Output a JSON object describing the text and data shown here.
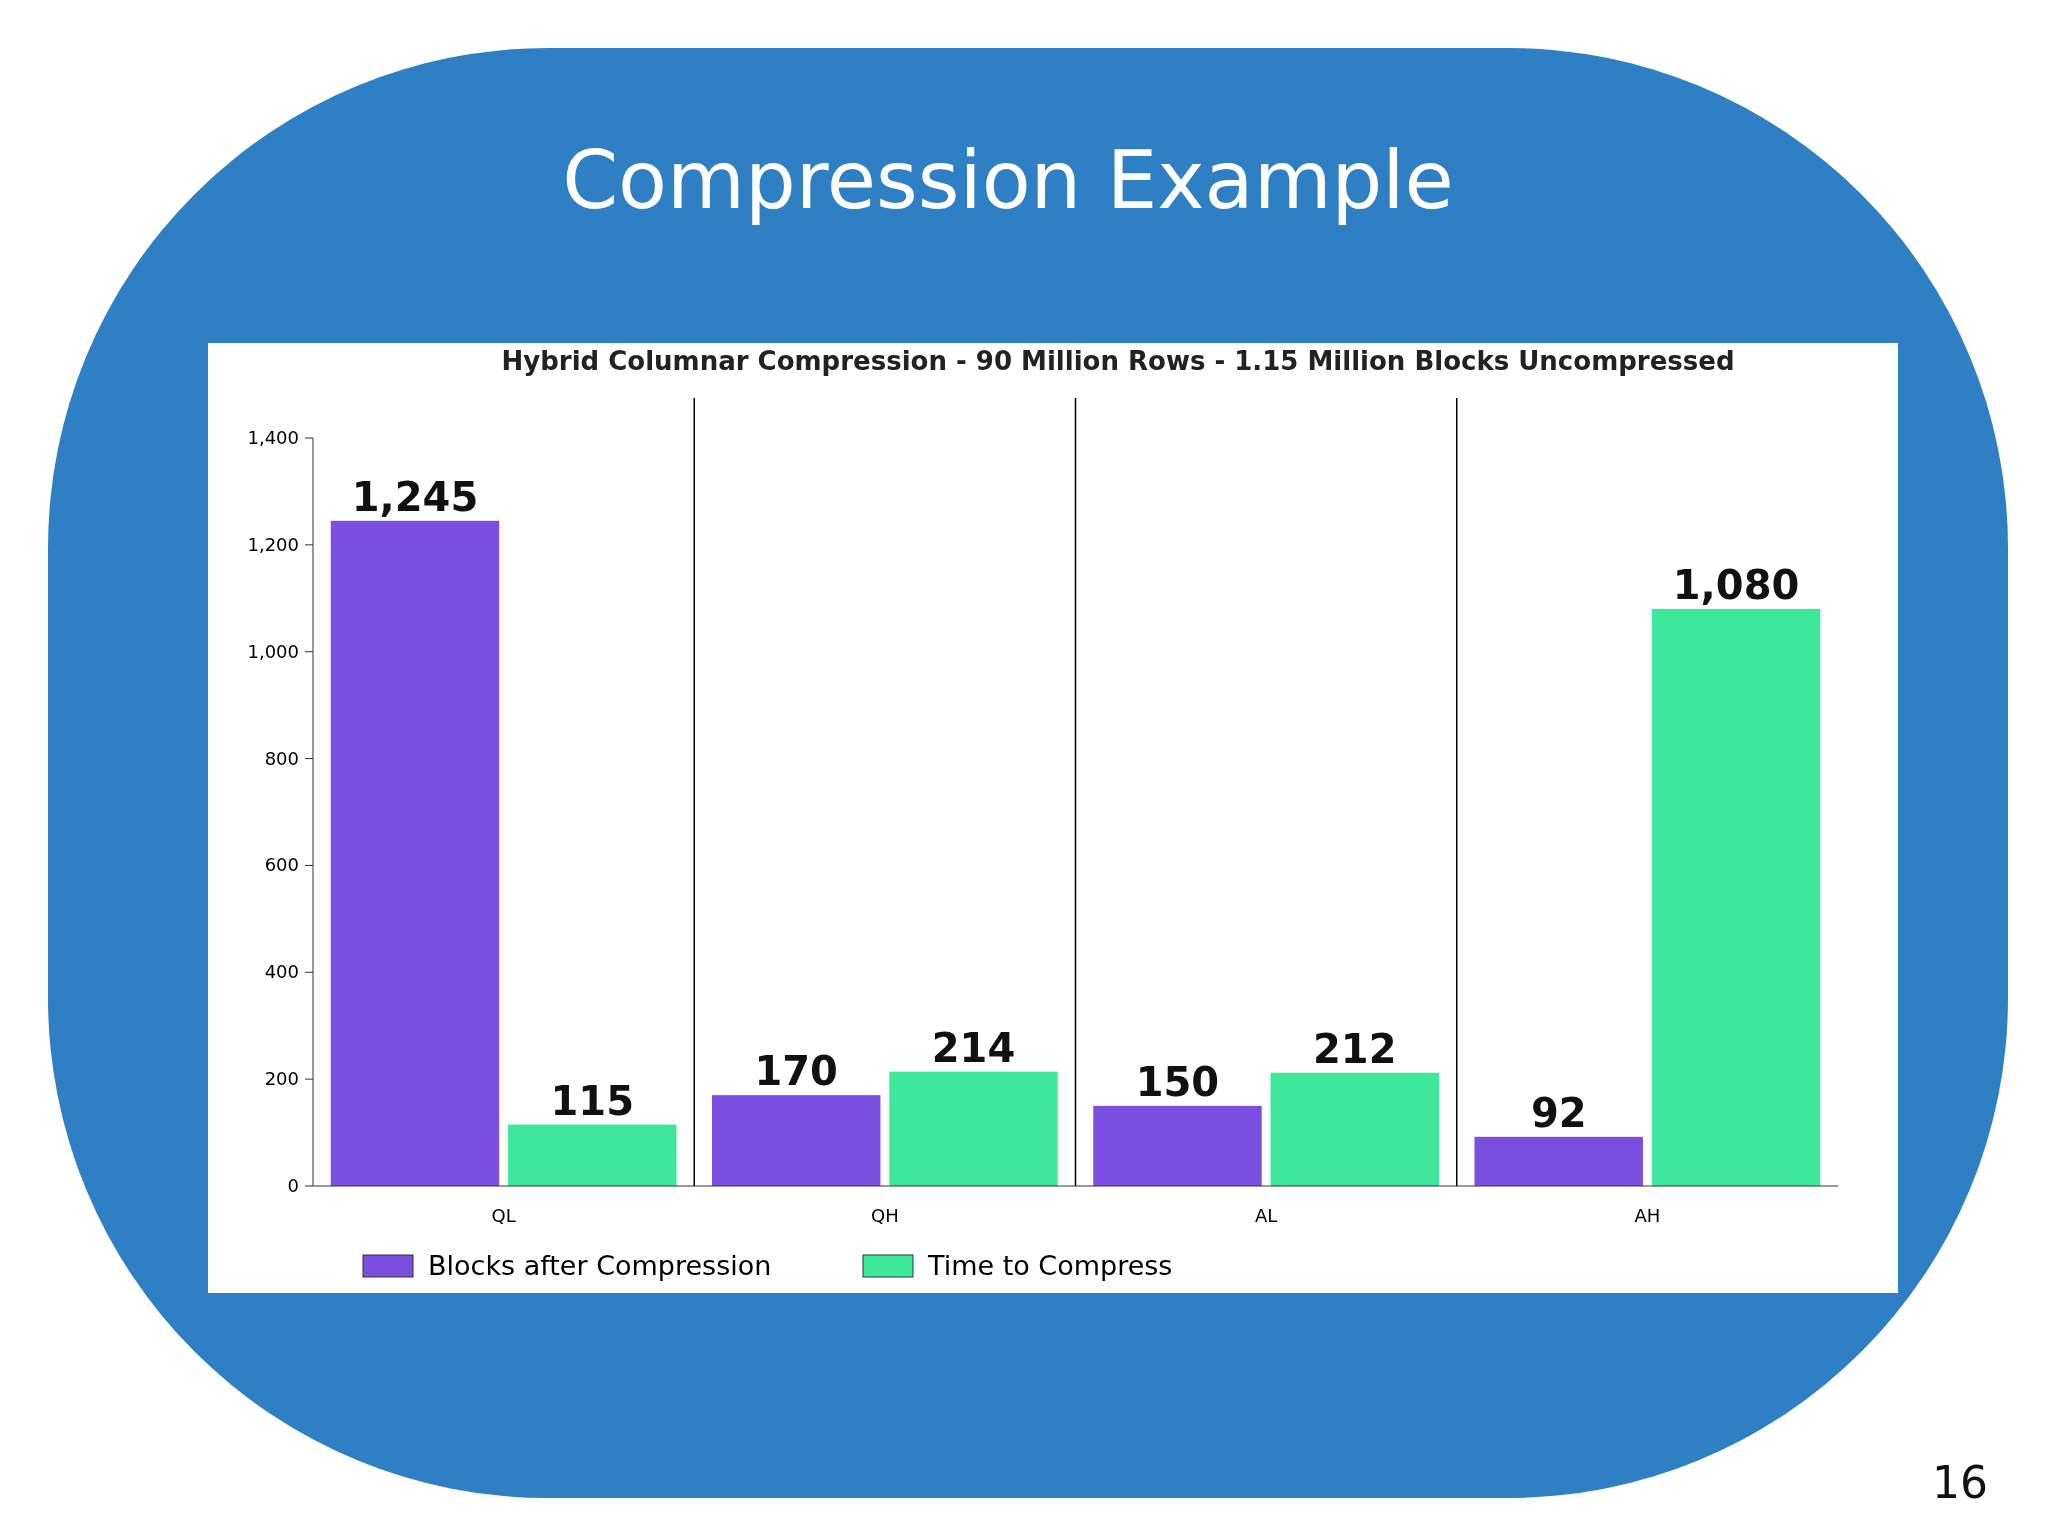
{
  "chart_data": {
    "type": "bar",
    "title": "Compression Example",
    "subtitle": "Hybrid Columnar Compression - 90 Million Rows - 1.15 Million Blocks Uncompressed",
    "categories": [
      "QL",
      "QH",
      "AL",
      "AH"
    ],
    "series": [
      {
        "name": "Blocks after Compression",
        "color": "#7b4fe0",
        "values": [
          1245,
          170,
          150,
          92
        ],
        "value_labels": [
          "1,245",
          "170",
          "150",
          "92"
        ]
      },
      {
        "name": "Time to Compress",
        "color": "#3ee89a",
        "values": [
          115,
          214,
          212,
          1080
        ],
        "value_labels": [
          "115",
          "214",
          "212",
          "1,080"
        ]
      }
    ],
    "ylim": [
      0,
      1400
    ],
    "yticks": [
      {
        "value": 0,
        "label": "0"
      },
      {
        "value": 200,
        "label": "200"
      },
      {
        "value": 400,
        "label": "400"
      },
      {
        "value": 600,
        "label": "600"
      },
      {
        "value": 800,
        "label": "800"
      },
      {
        "value": 1000,
        "label": "1,000"
      },
      {
        "value": 1200,
        "label": "1,200"
      },
      {
        "value": 1400,
        "label": "1,400"
      }
    ],
    "legend": "bottom left",
    "annotations": [
      "16"
    ]
  }
}
